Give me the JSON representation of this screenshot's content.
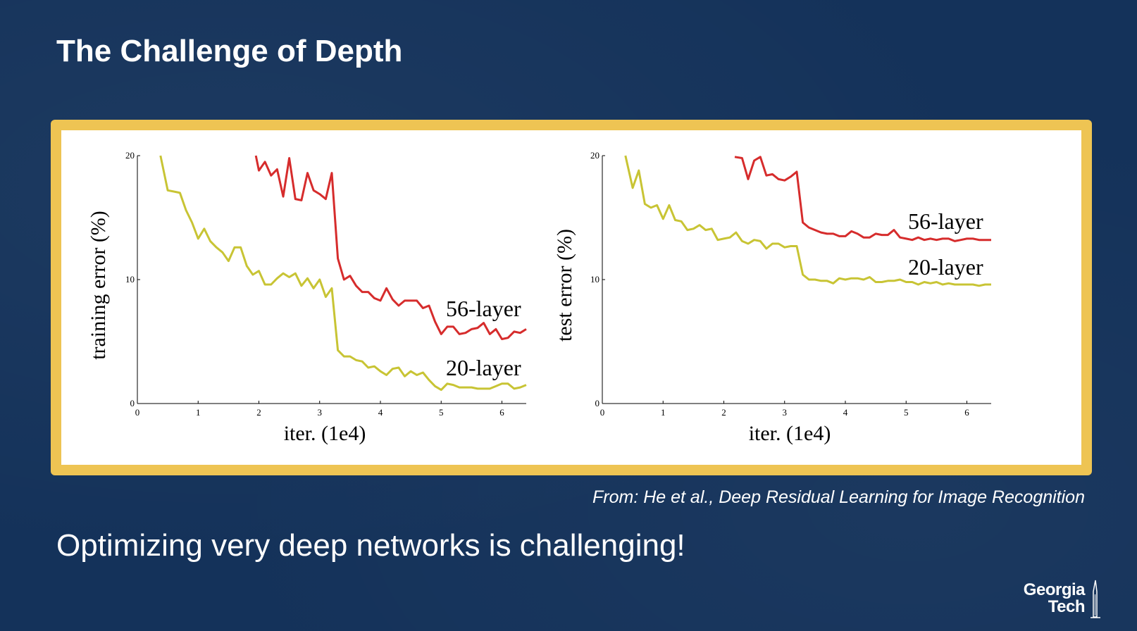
{
  "slide": {
    "title": "The Challenge of Depth",
    "citation": "From: He et al., Deep Residual Learning for Image Recognition",
    "subtitle": "Optimizing very deep networks is challenging!",
    "logo": {
      "line1": "Georgia",
      "line2": "Tech"
    }
  },
  "colors": {
    "background": "#14325a",
    "frame": "#eec453",
    "layer56": "#d62c2c",
    "layer20": "#c8c434"
  },
  "chart_data": [
    {
      "type": "line",
      "ylabel": "training error (%)",
      "xlabel": "iter. (1e4)",
      "xlim": [
        0,
        6.4
      ],
      "ylim": [
        0,
        20
      ],
      "xticks": [
        0,
        1,
        2,
        3,
        4,
        5,
        6
      ],
      "yticks": [
        0,
        10,
        20
      ],
      "series": [
        {
          "name": "56-layer",
          "color": "#d62c2c",
          "x": [
            1.95,
            2.0,
            2.1,
            2.2,
            2.3,
            2.4,
            2.5,
            2.6,
            2.7,
            2.8,
            2.9,
            3.0,
            3.1,
            3.2,
            3.3,
            3.4,
            3.5,
            3.6,
            3.7,
            3.8,
            3.9,
            4.0,
            4.1,
            4.2,
            4.3,
            4.4,
            4.5,
            4.6,
            4.7,
            4.8,
            4.9,
            5.0,
            5.1,
            5.2,
            5.3,
            5.4,
            5.5,
            5.6,
            5.7,
            5.8,
            5.9,
            6.0,
            6.1,
            6.2,
            6.3,
            6.4
          ],
          "values": [
            20.0,
            18.8,
            19.5,
            18.4,
            18.9,
            16.7,
            19.8,
            16.5,
            16.4,
            18.6,
            17.2,
            16.9,
            16.5,
            18.6,
            11.7,
            10.0,
            10.3,
            9.5,
            9.0,
            9.0,
            8.5,
            8.3,
            9.3,
            8.4,
            7.9,
            8.3,
            8.3,
            8.3,
            7.7,
            7.9,
            6.6,
            5.6,
            6.2,
            6.2,
            5.6,
            5.7,
            6.0,
            6.1,
            6.5,
            5.6,
            6.0,
            5.2,
            5.3,
            5.8,
            5.7,
            6.0
          ]
        },
        {
          "name": "20-layer",
          "color": "#c8c434",
          "x": [
            0.38,
            0.5,
            0.6,
            0.7,
            0.8,
            0.9,
            1.0,
            1.1,
            1.2,
            1.3,
            1.4,
            1.5,
            1.6,
            1.7,
            1.8,
            1.9,
            2.0,
            2.1,
            2.2,
            2.3,
            2.4,
            2.5,
            2.6,
            2.7,
            2.8,
            2.9,
            3.0,
            3.1,
            3.2,
            3.3,
            3.4,
            3.5,
            3.6,
            3.7,
            3.8,
            3.9,
            4.0,
            4.1,
            4.2,
            4.3,
            4.4,
            4.5,
            4.6,
            4.7,
            4.8,
            4.9,
            5.0,
            5.1,
            5.2,
            5.3,
            5.4,
            5.5,
            5.6,
            5.7,
            5.8,
            5.9,
            6.0,
            6.1,
            6.2,
            6.3,
            6.4
          ],
          "values": [
            20.0,
            17.2,
            17.1,
            17.0,
            15.6,
            14.6,
            13.3,
            14.1,
            13.1,
            12.6,
            12.2,
            11.5,
            12.6,
            12.6,
            11.1,
            10.4,
            10.7,
            9.6,
            9.6,
            10.1,
            10.5,
            10.2,
            10.5,
            9.5,
            10.1,
            9.3,
            10.0,
            8.6,
            9.3,
            4.3,
            3.8,
            3.8,
            3.5,
            3.4,
            2.9,
            3.0,
            2.6,
            2.3,
            2.8,
            2.9,
            2.2,
            2.6,
            2.3,
            2.5,
            1.9,
            1.4,
            1.1,
            1.6,
            1.5,
            1.3,
            1.3,
            1.3,
            1.2,
            1.2,
            1.2,
            1.4,
            1.6,
            1.6,
            1.2,
            1.3,
            1.5
          ]
        }
      ]
    },
    {
      "type": "line",
      "ylabel": "test error (%)",
      "xlabel": "iter. (1e4)",
      "xlim": [
        0,
        6.4
      ],
      "ylim": [
        0,
        20
      ],
      "xticks": [
        0,
        1,
        2,
        3,
        4,
        5,
        6
      ],
      "yticks": [
        0,
        10,
        20
      ],
      "series": [
        {
          "name": "56-layer",
          "color": "#d62c2c",
          "x": [
            2.18,
            2.3,
            2.4,
            2.5,
            2.6,
            2.7,
            2.8,
            2.9,
            3.0,
            3.1,
            3.2,
            3.3,
            3.4,
            3.5,
            3.6,
            3.7,
            3.8,
            3.9,
            4.0,
            4.1,
            4.2,
            4.3,
            4.4,
            4.5,
            4.6,
            4.7,
            4.8,
            4.9,
            5.0,
            5.1,
            5.2,
            5.3,
            5.4,
            5.5,
            5.6,
            5.7,
            5.8,
            5.9,
            6.0,
            6.1,
            6.2,
            6.3,
            6.4
          ],
          "values": [
            19.9,
            19.8,
            18.1,
            19.6,
            19.9,
            18.4,
            18.5,
            18.1,
            18.0,
            18.3,
            18.7,
            14.6,
            14.2,
            14.0,
            13.8,
            13.7,
            13.7,
            13.5,
            13.5,
            13.9,
            13.7,
            13.4,
            13.4,
            13.7,
            13.6,
            13.6,
            14.0,
            13.4,
            13.3,
            13.2,
            13.4,
            13.2,
            13.3,
            13.2,
            13.3,
            13.3,
            13.1,
            13.2,
            13.3,
            13.3,
            13.2,
            13.2,
            13.2
          ]
        },
        {
          "name": "20-layer",
          "color": "#c8c434",
          "x": [
            0.38,
            0.5,
            0.6,
            0.7,
            0.8,
            0.9,
            1.0,
            1.1,
            1.2,
            1.3,
            1.4,
            1.5,
            1.6,
            1.7,
            1.8,
            1.9,
            2.0,
            2.1,
            2.2,
            2.3,
            2.4,
            2.5,
            2.6,
            2.7,
            2.8,
            2.9,
            3.0,
            3.1,
            3.2,
            3.3,
            3.4,
            3.5,
            3.6,
            3.7,
            3.8,
            3.9,
            4.0,
            4.1,
            4.2,
            4.3,
            4.4,
            4.5,
            4.6,
            4.7,
            4.8,
            4.9,
            5.0,
            5.1,
            5.2,
            5.3,
            5.4,
            5.5,
            5.6,
            5.7,
            5.8,
            5.9,
            6.0,
            6.1,
            6.2,
            6.3,
            6.4
          ],
          "values": [
            20.0,
            17.4,
            18.8,
            16.1,
            15.8,
            16.0,
            14.9,
            16.0,
            14.8,
            14.7,
            14.0,
            14.1,
            14.4,
            14.0,
            14.1,
            13.2,
            13.3,
            13.4,
            13.8,
            13.1,
            12.9,
            13.2,
            13.1,
            12.5,
            12.9,
            12.9,
            12.6,
            12.7,
            12.7,
            10.4,
            10.0,
            10.0,
            9.9,
            9.9,
            9.7,
            10.1,
            10.0,
            10.1,
            10.1,
            10.0,
            10.2,
            9.8,
            9.8,
            9.9,
            9.9,
            10.0,
            9.8,
            9.8,
            9.6,
            9.8,
            9.7,
            9.8,
            9.6,
            9.7,
            9.6,
            9.6,
            9.6,
            9.6,
            9.5,
            9.6,
            9.6
          ]
        }
      ]
    }
  ]
}
